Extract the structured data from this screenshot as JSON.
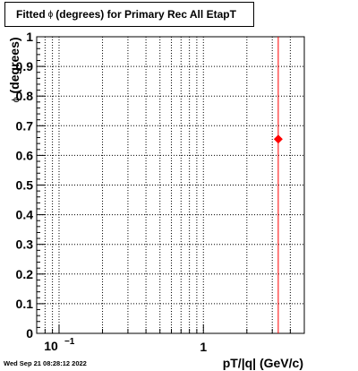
{
  "title": {
    "prefix": "Fitted",
    "symbol": "ϕ",
    "suffix": "(degrees) for Primary Rec All EtapT"
  },
  "timestamp": "Wed Sep 21 08:28:12 2022",
  "colors": {
    "marker": "#ff0000",
    "line": "#ff0000",
    "grid": "#000000",
    "axis": "#000000"
  },
  "chart_data": {
    "type": "scatter",
    "title": "Fitted ϕ (degrees) for Primary Rec All EtapT",
    "xlabel": "pT/|q| (GeV/c)",
    "ylabel": "ϕ (degrees)",
    "xscale": "log",
    "xlim": [
      0.07,
      5.0
    ],
    "ylim": [
      0,
      1
    ],
    "x_tick_labels": [
      {
        "value": 0.1,
        "base": "10",
        "exp": "−1"
      },
      {
        "value": 1,
        "base": "1",
        "exp": ""
      }
    ],
    "y_ticks": [
      0,
      0.1,
      0.2,
      0.3,
      0.4,
      0.5,
      0.6,
      0.7,
      0.8,
      0.9,
      1
    ],
    "y_tick_labels": [
      "0",
      "0.1",
      "0.2",
      "0.3",
      "0.4",
      "0.5",
      "0.6",
      "0.7",
      "0.8",
      "0.9",
      "1"
    ],
    "grid": true,
    "vertical_line": {
      "x": 3.3
    },
    "series": [
      {
        "points": [
          {
            "x": 3.3,
            "y": 0.655
          }
        ],
        "marker": "diamond"
      }
    ]
  }
}
